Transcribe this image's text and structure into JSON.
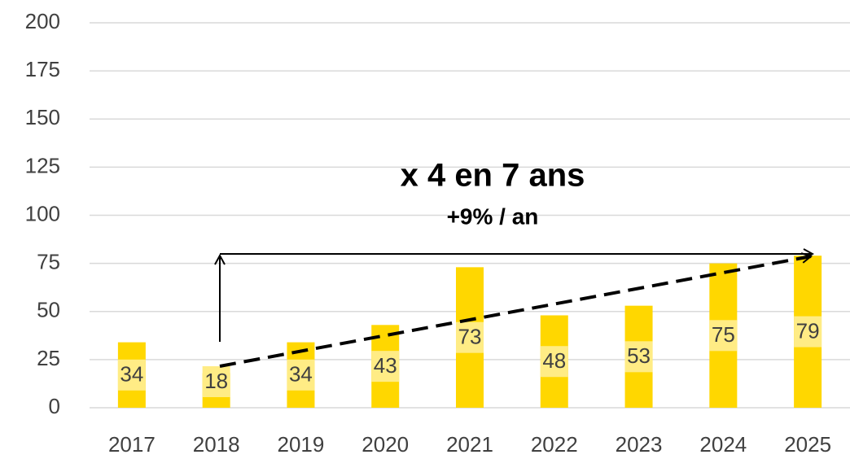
{
  "chart_data": {
    "type": "bar",
    "annotations": [
      "x 4 en 7 ans",
      "+9% / an"
    ],
    "categories": [
      "2017",
      "2018",
      "2019",
      "2020",
      "2021",
      "2022",
      "2023",
      "2024",
      "2025"
    ],
    "values": [
      34,
      18,
      34,
      43,
      73,
      48,
      53,
      75,
      79
    ],
    "color": "#FFD700",
    "ylim": [
      0,
      200
    ],
    "yticks": [
      0,
      25,
      50,
      75,
      100,
      125,
      150,
      175,
      200
    ],
    "grid": true
  }
}
